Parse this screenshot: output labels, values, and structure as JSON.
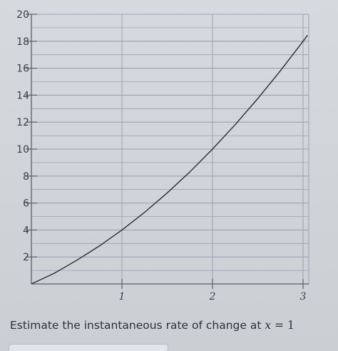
{
  "chart_data": {
    "type": "line",
    "x_ticks": [
      "1",
      "2",
      "3"
    ],
    "y_ticks": [
      "2",
      "4",
      "6",
      "8",
      "10",
      "12",
      "14",
      "16",
      "18",
      "20"
    ],
    "xlim": [
      0,
      3.05
    ],
    "ylim": [
      0,
      20
    ],
    "grid": true,
    "series": [
      {
        "x": [
          0,
          0.25,
          0.5,
          0.75,
          1,
          1.25,
          1.5,
          1.75,
          2,
          2.25,
          2.5,
          2.75,
          3,
          3.05
        ],
        "values": [
          0,
          0.78,
          1.75,
          2.81,
          4.0,
          5.31,
          6.75,
          8.31,
          10.0,
          11.81,
          13.75,
          15.81,
          18.0,
          18.45
        ]
      }
    ],
    "colors": {
      "curve": "#2a2e36",
      "grid": "#9aa3b3",
      "axis": "#5a606a"
    }
  },
  "question": {
    "prefix": "Estimate the instantaneous rate of change at ",
    "variable": "x",
    "equals": "=",
    "value": "1"
  },
  "answer": {
    "value": ""
  }
}
